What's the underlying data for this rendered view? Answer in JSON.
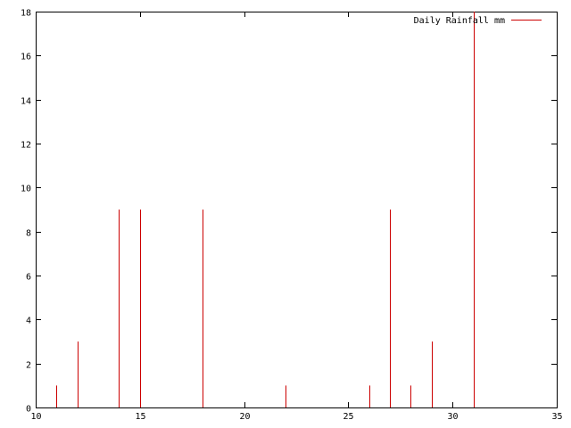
{
  "chart_data": {
    "type": "bar",
    "title": "",
    "xlabel": "",
    "ylabel": "",
    "xlim": [
      10,
      35
    ],
    "ylim": [
      0,
      18
    ],
    "xticks": [
      10,
      15,
      20,
      25,
      30,
      35
    ],
    "yticks": [
      0,
      2,
      4,
      6,
      8,
      10,
      12,
      14,
      16,
      18
    ],
    "grid": false,
    "legend": {
      "placement": "top-right",
      "entries": [
        "Daily Rainfall mm"
      ]
    },
    "series": [
      {
        "name": "Daily Rainfall mm",
        "color": "#cc0000",
        "x": [
          11,
          12,
          14,
          15,
          18,
          22,
          26,
          27,
          28,
          29,
          31
        ],
        "values": [
          1,
          3,
          9,
          9,
          9,
          1,
          1,
          9,
          1,
          3,
          18
        ]
      }
    ]
  }
}
